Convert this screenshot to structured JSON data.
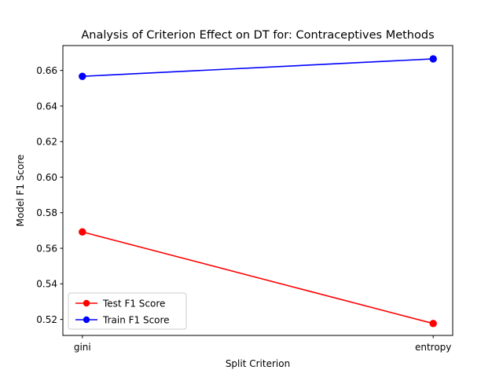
{
  "chart_data": {
    "type": "line",
    "title": "Analysis of Criterion Effect on DT for: Contraceptives Methods",
    "xlabel": "Split Criterion",
    "ylabel": "Model F1 Score",
    "categories": [
      "gini",
      "entropy"
    ],
    "ylim": [
      0.511,
      0.674
    ],
    "yticks": [
      0.52,
      0.54,
      0.56,
      0.58,
      0.6,
      0.62,
      0.64,
      0.66
    ],
    "ytick_labels": [
      "0.52",
      "0.54",
      "0.56",
      "0.58",
      "0.60",
      "0.62",
      "0.64",
      "0.66"
    ],
    "grid": false,
    "legend_position": "lower-left",
    "series": [
      {
        "name": "Test F1 Score",
        "values": [
          0.5692,
          0.5177
        ],
        "color": "#ff0000",
        "marker": "circle"
      },
      {
        "name": "Train F1 Score",
        "values": [
          0.6567,
          0.6665
        ],
        "color": "#0000ff",
        "marker": "circle"
      }
    ]
  }
}
